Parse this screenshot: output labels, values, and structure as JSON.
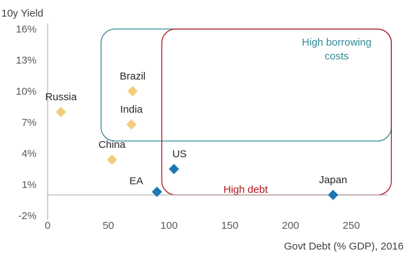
{
  "chart_data": {
    "type": "scatter",
    "ylabel": "10y Yield",
    "xlabel": "Govt Debt (% GDP), 2016",
    "xlim": [
      0,
      280
    ],
    "ylim": [
      -2,
      16
    ],
    "x_ticks": [
      {
        "value": 0,
        "label": "0"
      },
      {
        "value": 50,
        "label": "50"
      },
      {
        "value": 100,
        "label": "100"
      },
      {
        "value": 150,
        "label": "150"
      },
      {
        "value": 200,
        "label": "200"
      },
      {
        "value": 250,
        "label": "250"
      }
    ],
    "y_ticks": [
      {
        "value": 16,
        "label": "16%"
      },
      {
        "value": 13,
        "label": "13%"
      },
      {
        "value": 10,
        "label": "10%"
      },
      {
        "value": 7,
        "label": "7%"
      },
      {
        "value": 4,
        "label": "4%"
      },
      {
        "value": 1,
        "label": "1%"
      },
      {
        "value": -2,
        "label": "-2%"
      }
    ],
    "grid": false,
    "colors": {
      "emerging": "#F2CD7E",
      "developed": "#1F77B4",
      "high_borrowing": "#2F8A96",
      "high_debt": "#B5121B",
      "axis": "#A6A6A6"
    },
    "points": [
      {
        "label": "Russia",
        "x": 11,
        "y": 8.0,
        "group": "emerging"
      },
      {
        "label": "Brazil",
        "x": 70,
        "y": 10.0,
        "group": "emerging"
      },
      {
        "label": "India",
        "x": 69,
        "y": 6.8,
        "group": "emerging"
      },
      {
        "label": "China",
        "x": 53,
        "y": 3.4,
        "group": "emerging"
      },
      {
        "label": "US",
        "x": 104,
        "y": 2.5,
        "group": "developed"
      },
      {
        "label": "EA",
        "x": 90,
        "y": 0.3,
        "group": "developed"
      },
      {
        "label": "Japan",
        "x": 235,
        "y": 0.0,
        "group": "developed"
      }
    ],
    "regions": [
      {
        "label": "High borrowing costs",
        "lines": [
          "High borrowing",
          "costs"
        ],
        "x_range": [
          44,
          283
        ],
        "y_range": [
          5.2,
          16
        ],
        "color": "#2F8A96"
      },
      {
        "label": "High debt",
        "lines": [
          "High debt"
        ],
        "x_range": [
          94,
          283
        ],
        "y_range": [
          0,
          16
        ],
        "color": "#B5121B"
      }
    ]
  }
}
